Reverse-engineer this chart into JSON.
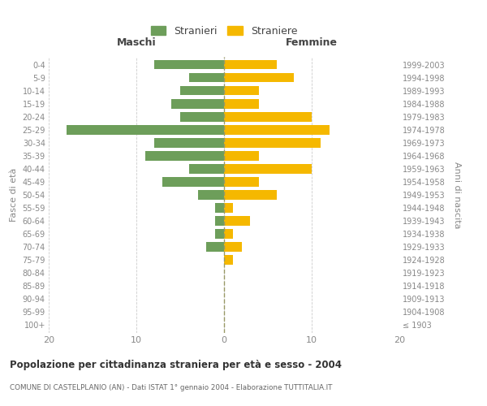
{
  "age_groups": [
    "100+",
    "95-99",
    "90-94",
    "85-89",
    "80-84",
    "75-79",
    "70-74",
    "65-69",
    "60-64",
    "55-59",
    "50-54",
    "45-49",
    "40-44",
    "35-39",
    "30-34",
    "25-29",
    "20-24",
    "15-19",
    "10-14",
    "5-9",
    "0-4"
  ],
  "birth_years": [
    "≤ 1903",
    "1904-1908",
    "1909-1913",
    "1914-1918",
    "1919-1923",
    "1924-1928",
    "1929-1933",
    "1934-1938",
    "1939-1943",
    "1944-1948",
    "1949-1953",
    "1954-1958",
    "1959-1963",
    "1964-1968",
    "1969-1973",
    "1974-1978",
    "1979-1983",
    "1984-1988",
    "1989-1993",
    "1994-1998",
    "1999-2003"
  ],
  "males": [
    0,
    0,
    0,
    0,
    0,
    0,
    2,
    1,
    1,
    1,
    3,
    7,
    4,
    9,
    8,
    18,
    5,
    6,
    5,
    4,
    8
  ],
  "females": [
    0,
    0,
    0,
    0,
    0,
    1,
    2,
    1,
    3,
    1,
    6,
    4,
    10,
    4,
    11,
    12,
    10,
    4,
    4,
    8,
    6
  ],
  "male_color": "#6d9e5a",
  "female_color": "#f5b800",
  "title": "Popolazione per cittadinanza straniera per età e sesso - 2004",
  "subtitle": "COMUNE DI CASTELPLANIO (AN) - Dati ISTAT 1° gennaio 2004 - Elaborazione TUTTITALIA.IT",
  "xlabel_left": "Maschi",
  "xlabel_right": "Femmine",
  "ylabel_left": "Fasce di età",
  "ylabel_right": "Anni di nascita",
  "legend_male": "Stranieri",
  "legend_female": "Straniere",
  "xlim": 20,
  "background_color": "#ffffff",
  "grid_color": "#cccccc",
  "text_color": "#888888"
}
